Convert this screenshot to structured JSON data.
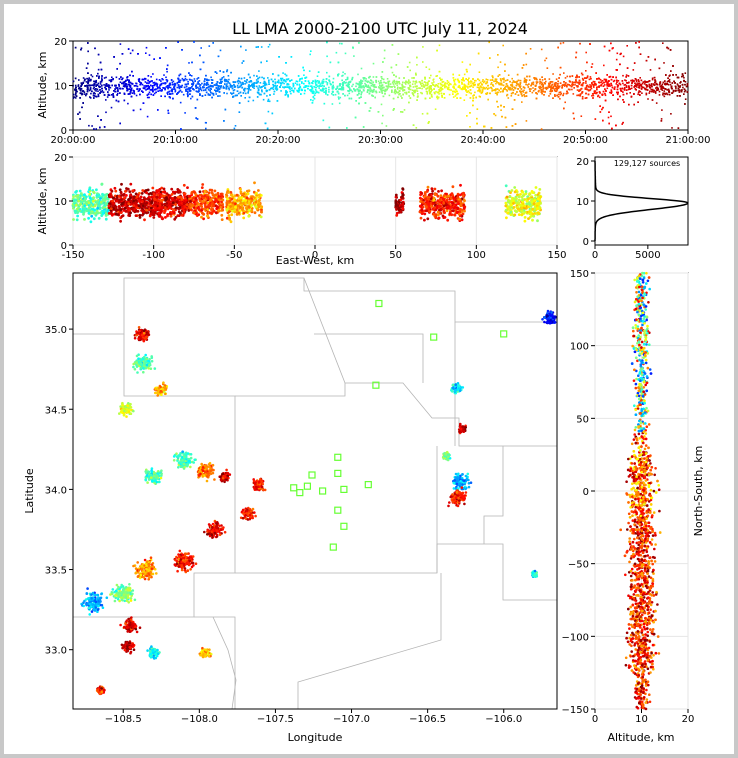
{
  "title": "LL LMA 2000-2100 UTC July 11, 2024",
  "colors": {
    "frame_background": "#c8c8c8",
    "axes_background": "#ffffff",
    "station_marker": "#66ff33",
    "boundary_line": "#b4b4b4"
  },
  "colormap": "jet (blue = 20:00 UTC, dark red = 21:00 UTC)",
  "chart_data": [
    {
      "id": "time-height",
      "type": "scatter",
      "xlabel": "",
      "ylabel": "Altitude, km",
      "xlim": [
        "20:00:00",
        "21:00:00"
      ],
      "ylim": [
        0,
        20
      ],
      "xticks": [
        "20:00:00",
        "20:10:00",
        "20:20:00",
        "20:30:00",
        "20:40:00",
        "20:50:00",
        "21:00:00"
      ],
      "yticks": [
        0,
        10,
        20
      ],
      "description_of_density": "continuous band of sources, core between 4 and 15 km across the whole hour"
    },
    {
      "id": "east-west-altitude",
      "type": "scatter",
      "xlabel": "East-West, km",
      "ylabel": "Altitude, km",
      "xlim": [
        -150,
        150
      ],
      "ylim": [
        0,
        20
      ],
      "xticks": [
        -150,
        -100,
        -50,
        0,
        50,
        100,
        150
      ],
      "yticks": [
        0,
        10,
        20
      ],
      "grid": true,
      "clusters": [
        {
          "x": [
            -150,
            -128
          ],
          "t": 0.45
        },
        {
          "x": [
            -128,
            -95
          ],
          "t": 0.93
        },
        {
          "x": [
            -100,
            -78
          ],
          "t": 0.9
        },
        {
          "x": [
            -78,
            -57
          ],
          "t": 0.82
        },
        {
          "x": [
            -55,
            -33
          ],
          "t": 0.7
        },
        {
          "x": [
            50,
            55
          ],
          "t": 0.97
        },
        {
          "x": [
            65,
            93
          ],
          "t": 0.85
        },
        {
          "x": [
            118,
            140
          ],
          "t": 0.6
        }
      ]
    },
    {
      "id": "altitude-histogram",
      "type": "line",
      "xlabel": "",
      "ylabel": "",
      "annotation": "129,127 sources",
      "xlim": [
        0,
        8800
      ],
      "ylim": [
        -1,
        21
      ],
      "xticks": [
        0,
        5000
      ],
      "yticks": [
        0,
        10,
        20
      ],
      "peak": {
        "altitude_km": 9.5,
        "count": 8700
      }
    },
    {
      "id": "plan-view",
      "type": "scatter",
      "xlabel": "Longitude",
      "ylabel": "Latitude",
      "xlim": [
        -108.83,
        -105.65
      ],
      "ylim": [
        32.63,
        35.35
      ],
      "xticks": [
        -108.5,
        -108.0,
        -107.5,
        -107.0,
        -106.5,
        -106.0
      ],
      "yticks": [
        33.0,
        33.5,
        34.0,
        34.5,
        35.0
      ],
      "xtick_labels": [
        "−108.5",
        "−108.0",
        "−107.5",
        "−107.0",
        "−106.5",
        "−106.0"
      ],
      "ytick_labels": [
        "33.0",
        "33.5",
        "34.0",
        "34.5",
        "35.0"
      ],
      "stations": [
        [
          -106.82,
          35.16
        ],
        [
          -106.46,
          34.95
        ],
        [
          -106.0,
          34.97
        ],
        [
          -106.84,
          34.65
        ],
        [
          -107.09,
          34.2
        ],
        [
          -107.09,
          34.1
        ],
        [
          -107.26,
          34.09
        ],
        [
          -107.38,
          34.01
        ],
        [
          -107.34,
          33.98
        ],
        [
          -107.29,
          34.02
        ],
        [
          -107.19,
          33.99
        ],
        [
          -107.05,
          34.0
        ],
        [
          -106.89,
          34.03
        ],
        [
          -107.09,
          33.87
        ],
        [
          -107.05,
          33.77
        ],
        [
          -107.12,
          33.64
        ]
      ],
      "clusters": [
        {
          "lon": -108.37,
          "lat": 34.97,
          "r": 0.07,
          "t": 0.9
        },
        {
          "lon": -108.37,
          "lat": 34.79,
          "r": 0.09,
          "t": 0.45
        },
        {
          "lon": -108.25,
          "lat": 34.62,
          "r": 0.06,
          "t": 0.7
        },
        {
          "lon": -108.48,
          "lat": 34.5,
          "r": 0.06,
          "t": 0.6
        },
        {
          "lon": -108.3,
          "lat": 34.08,
          "r": 0.08,
          "t": 0.45
        },
        {
          "lon": -108.1,
          "lat": 34.18,
          "r": 0.09,
          "t": 0.45
        },
        {
          "lon": -107.96,
          "lat": 34.12,
          "r": 0.08,
          "t": 0.75
        },
        {
          "lon": -107.83,
          "lat": 34.08,
          "r": 0.05,
          "t": 0.9
        },
        {
          "lon": -107.61,
          "lat": 34.03,
          "r": 0.06,
          "t": 0.85
        },
        {
          "lon": -107.68,
          "lat": 33.85,
          "r": 0.06,
          "t": 0.85
        },
        {
          "lon": -107.9,
          "lat": 33.75,
          "r": 0.08,
          "t": 0.9
        },
        {
          "lon": -108.1,
          "lat": 33.55,
          "r": 0.09,
          "t": 0.85
        },
        {
          "lon": -108.35,
          "lat": 33.5,
          "r": 0.1,
          "t": 0.75
        },
        {
          "lon": -108.5,
          "lat": 33.35,
          "r": 0.1,
          "t": 0.5
        },
        {
          "lon": -108.7,
          "lat": 33.3,
          "r": 0.1,
          "t": 0.3
        },
        {
          "lon": -108.45,
          "lat": 33.15,
          "r": 0.07,
          "t": 0.9
        },
        {
          "lon": -108.47,
          "lat": 33.02,
          "r": 0.06,
          "t": 0.95
        },
        {
          "lon": -108.3,
          "lat": 32.98,
          "r": 0.05,
          "t": 0.4
        },
        {
          "lon": -107.96,
          "lat": 32.98,
          "r": 0.05,
          "t": 0.7
        },
        {
          "lon": -108.65,
          "lat": 32.75,
          "r": 0.04,
          "t": 0.85
        },
        {
          "lon": -106.31,
          "lat": 34.63,
          "r": 0.05,
          "t": 0.35
        },
        {
          "lon": -106.27,
          "lat": 34.38,
          "r": 0.04,
          "t": 0.95
        },
        {
          "lon": -106.28,
          "lat": 34.05,
          "r": 0.08,
          "t": 0.3
        },
        {
          "lon": -106.3,
          "lat": 33.95,
          "r": 0.08,
          "t": 0.85
        },
        {
          "lon": -105.7,
          "lat": 35.07,
          "r": 0.06,
          "t": 0.15
        },
        {
          "lon": -105.8,
          "lat": 33.47,
          "r": 0.03,
          "t": 0.4
        },
        {
          "lon": -106.38,
          "lat": 34.21,
          "r": 0.04,
          "t": 0.5
        }
      ]
    },
    {
      "id": "altitude-north-south",
      "type": "scatter",
      "xlabel": "Altitude, km",
      "ylabel": "North-South, km",
      "xlim": [
        0,
        20
      ],
      "ylim": [
        -150,
        150
      ],
      "xticks": [
        0,
        10,
        20
      ],
      "yticks": [
        -150,
        -100,
        -50,
        0,
        50,
        100,
        150
      ],
      "ytick_labels": [
        "−150",
        "−100",
        "−50",
        "0",
        "50",
        "100",
        "150"
      ],
      "grid": true
    }
  ]
}
